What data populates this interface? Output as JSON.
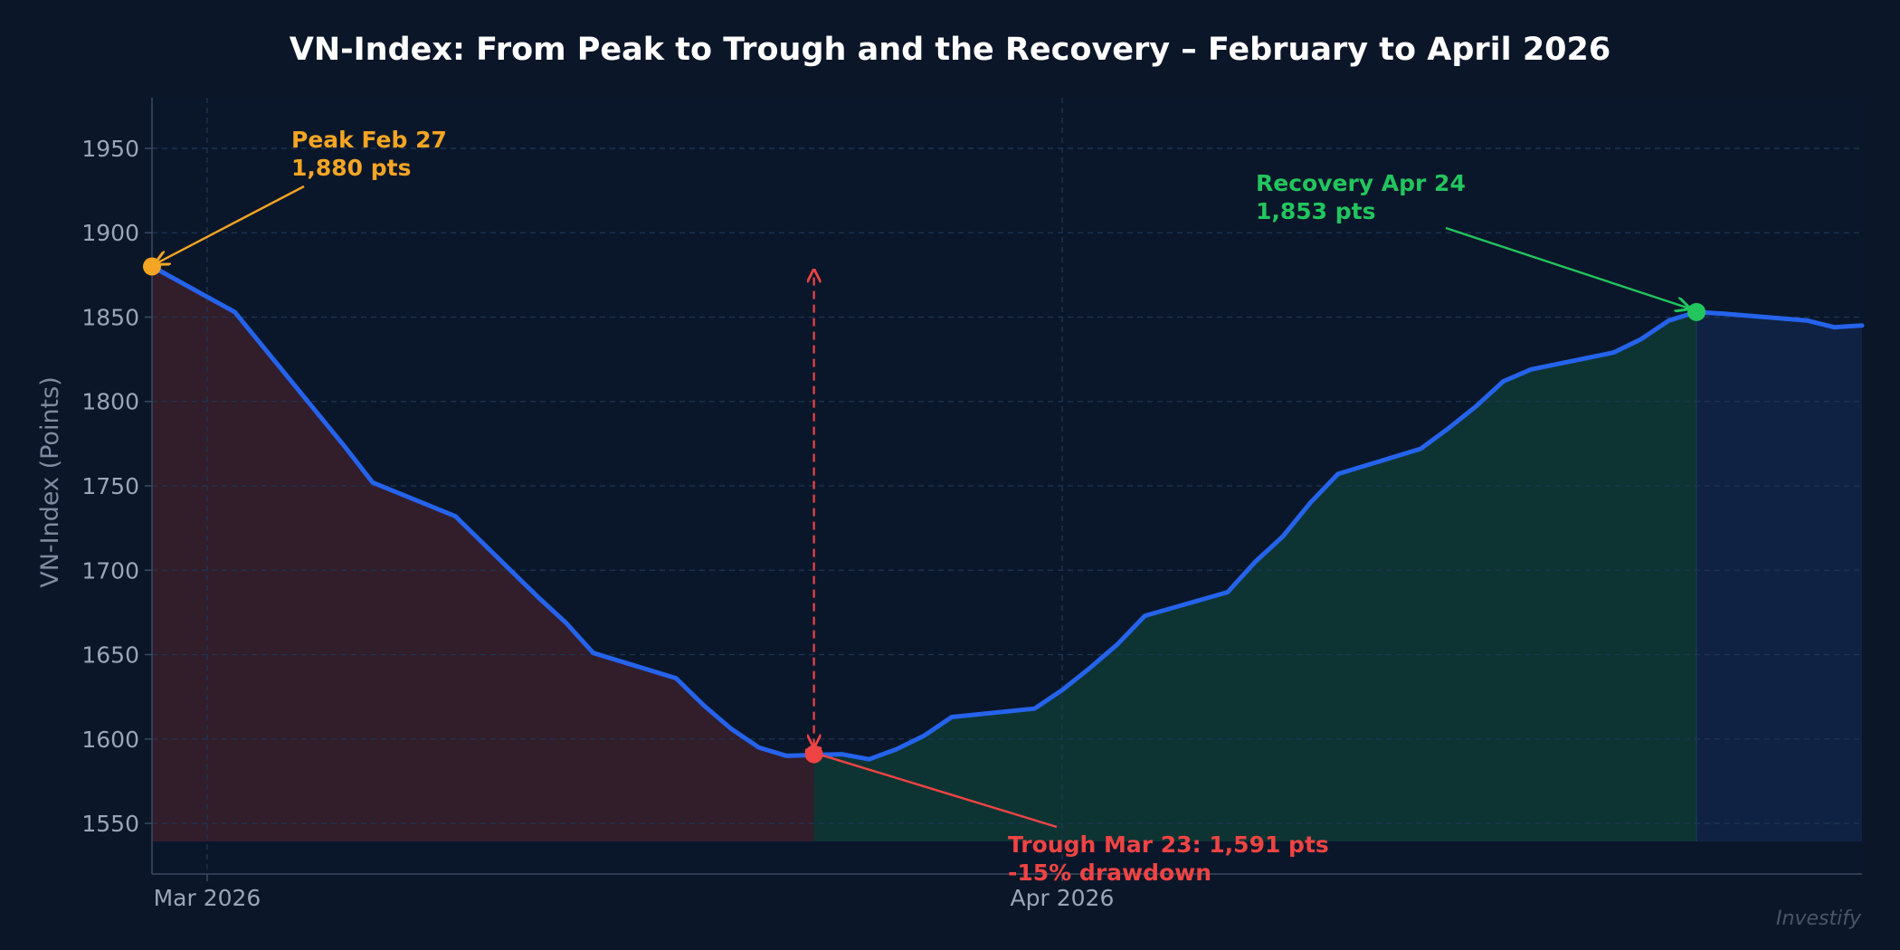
{
  "chart_data": {
    "type": "line",
    "title": "VN-Index: From Peak to Trough and the Recovery – February to April 2026",
    "ylabel": "VN-Index (Points)",
    "xlabel": "",
    "ylim": [
      1520,
      1980
    ],
    "xlim": [
      "2026-02-27",
      "2026-04-30"
    ],
    "yticks": [
      1550,
      1600,
      1650,
      1700,
      1750,
      1800,
      1850,
      1900,
      1950
    ],
    "xticks": [
      {
        "date": "2026-03-01",
        "label": "Mar 2026"
      },
      {
        "date": "2026-04-01",
        "label": "Apr 2026"
      }
    ],
    "grid": true,
    "series": [
      {
        "name": "",
        "color": "#2563eb",
        "points": [
          [
            "2026-02-27",
            1880
          ],
          [
            "2026-03-02",
            1853
          ],
          [
            "2026-03-03",
            1833
          ],
          [
            "2026-03-04",
            1813
          ],
          [
            "2026-03-05",
            1793
          ],
          [
            "2026-03-06",
            1773
          ],
          [
            "2026-03-07",
            1752
          ],
          [
            "2026-03-10",
            1732
          ],
          [
            "2026-03-11",
            1716
          ],
          [
            "2026-03-12",
            1700
          ],
          [
            "2026-03-13",
            1684
          ],
          [
            "2026-03-14",
            1669
          ],
          [
            "2026-03-15",
            1651
          ],
          [
            "2026-03-18",
            1636
          ],
          [
            "2026-03-19",
            1620
          ],
          [
            "2026-03-20",
            1606
          ],
          [
            "2026-03-21",
            1595
          ],
          [
            "2026-03-22",
            1590
          ],
          [
            "2026-03-24",
            1591
          ],
          [
            "2026-03-25",
            1588
          ],
          [
            "2026-03-26",
            1594
          ],
          [
            "2026-03-27",
            1602
          ],
          [
            "2026-03-28",
            1613
          ],
          [
            "2026-03-31",
            1618
          ],
          [
            "2026-04-01",
            1629
          ],
          [
            "2026-04-02",
            1642
          ],
          [
            "2026-04-03",
            1656
          ],
          [
            "2026-04-04",
            1673
          ],
          [
            "2026-04-07",
            1687
          ],
          [
            "2026-04-08",
            1705
          ],
          [
            "2026-04-09",
            1720
          ],
          [
            "2026-04-10",
            1740
          ],
          [
            "2026-04-11",
            1757
          ],
          [
            "2026-04-14",
            1772
          ],
          [
            "2026-04-15",
            1784
          ],
          [
            "2026-04-16",
            1797
          ],
          [
            "2026-04-17",
            1812
          ],
          [
            "2026-04-18",
            1819
          ],
          [
            "2026-04-21",
            1829
          ],
          [
            "2026-04-22",
            1837
          ],
          [
            "2026-04-23",
            1848
          ],
          [
            "2026-04-24",
            1853
          ],
          [
            "2026-04-25",
            1852
          ],
          [
            "2026-04-28",
            1848
          ],
          [
            "2026-04-29",
            1844
          ],
          [
            "2026-04-30",
            1845
          ]
        ]
      }
    ],
    "regions": [
      {
        "name": "decline",
        "from": "2026-02-27",
        "to": "2026-03-23",
        "color": "#3a1e2c"
      },
      {
        "name": "recovery",
        "from": "2026-03-23",
        "to": "2026-04-24",
        "color": "#0e3a35"
      },
      {
        "name": "post-recovery",
        "from": "2026-04-24",
        "to": "2026-04-30",
        "color": "#102448"
      }
    ],
    "annotations": [
      {
        "name": "peak",
        "date": "2026-02-27",
        "value": 1880,
        "lines": [
          "Peak Feb 27",
          "1,880 pts"
        ],
        "color": "#f5a524"
      },
      {
        "name": "trough",
        "date": "2026-03-23",
        "value": 1591,
        "lines": [
          "Trough Mar 23: 1,591 pts",
          "-15% drawdown"
        ],
        "color": "#ef4444"
      },
      {
        "name": "recovery",
        "date": "2026-04-24",
        "value": 1853,
        "lines": [
          "Recovery Apr 24",
          "1,853 pts"
        ],
        "color": "#22c55e"
      }
    ],
    "drawdown_arrow": {
      "date": "2026-03-23",
      "from": 1591,
      "to": 1880,
      "color": "#ef4444"
    }
  },
  "watermark": "Investify"
}
